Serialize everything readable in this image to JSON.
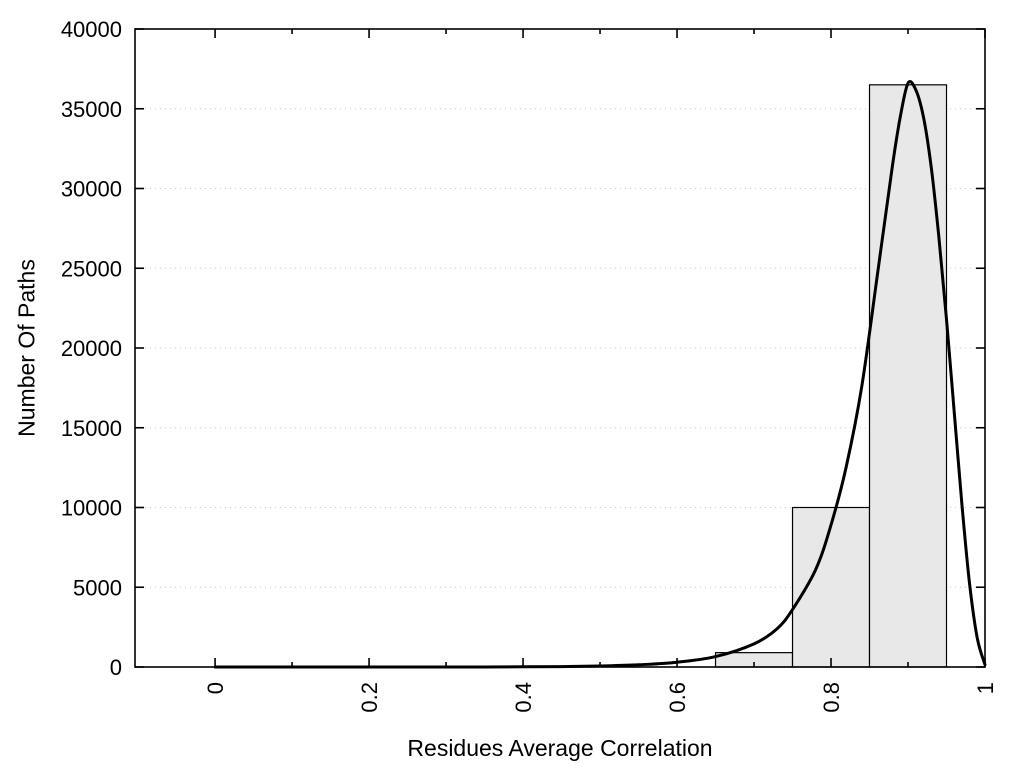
{
  "figure": {
    "background_color": "#ffffff"
  },
  "chart_data": {
    "type": "bar",
    "subtype": "histogram-with-density-curve",
    "title": "",
    "xlabel": "Residues Average Correlation",
    "ylabel": "Number Of Paths",
    "xlim": [
      -0.104,
      1.0
    ],
    "ylim": [
      0,
      40000
    ],
    "grid": "horizontal dotted lines at y ticks",
    "legend": "none",
    "x_tick_values": [
      0,
      0.2,
      0.4,
      0.6,
      0.8,
      1
    ],
    "x_tick_labels": [
      "0",
      "0.2",
      "0.4",
      "0.6",
      "0.8",
      "1"
    ],
    "x_minor_tick_values": [
      0.1,
      0.3,
      0.5,
      0.7,
      0.9
    ],
    "y_tick_values": [
      0,
      5000,
      10000,
      15000,
      20000,
      25000,
      30000,
      35000,
      40000
    ],
    "y_tick_labels": [
      "0",
      "5000",
      "10000",
      "15000",
      "20000",
      "25000",
      "30000",
      "35000",
      "40000"
    ],
    "histogram": {
      "bin_width": 0.1,
      "fill_color": "#e8e8e8",
      "stroke_color": "#000000",
      "bins": [
        {
          "center": 0.7,
          "range": [
            0.65,
            0.75
          ],
          "count": 900
        },
        {
          "center": 0.8,
          "range": [
            0.75,
            0.85
          ],
          "count": 10000
        },
        {
          "center": 0.9,
          "range": [
            0.85,
            0.95
          ],
          "count": 36500
        }
      ]
    },
    "curve": {
      "name": "density-fit",
      "color": "#000000",
      "stroke_width": 3,
      "points": [
        [
          0,
          0
        ],
        [
          0.05,
          0
        ],
        [
          0.1,
          0
        ],
        [
          0.15,
          0
        ],
        [
          0.2,
          0
        ],
        [
          0.25,
          0
        ],
        [
          0.3,
          0
        ],
        [
          0.35,
          0
        ],
        [
          0.4,
          10
        ],
        [
          0.45,
          25
        ],
        [
          0.5,
          60
        ],
        [
          0.55,
          140
        ],
        [
          0.6,
          300
        ],
        [
          0.65,
          650
        ],
        [
          0.7,
          1450
        ],
        [
          0.73,
          2400
        ],
        [
          0.75,
          3600
        ],
        [
          0.78,
          6100
        ],
        [
          0.8,
          8900
        ],
        [
          0.82,
          12600
        ],
        [
          0.84,
          17600
        ],
        [
          0.86,
          24500
        ],
        [
          0.88,
          31500
        ],
        [
          0.89,
          34500
        ],
        [
          0.9,
          36600
        ],
        [
          0.91,
          36200
        ],
        [
          0.92,
          34500
        ],
        [
          0.93,
          31400
        ],
        [
          0.94,
          27000
        ],
        [
          0.95,
          21800
        ],
        [
          0.96,
          16000
        ],
        [
          0.97,
          10200
        ],
        [
          0.98,
          5200
        ],
        [
          0.99,
          1800
        ],
        [
          1.0,
          150
        ]
      ]
    }
  }
}
